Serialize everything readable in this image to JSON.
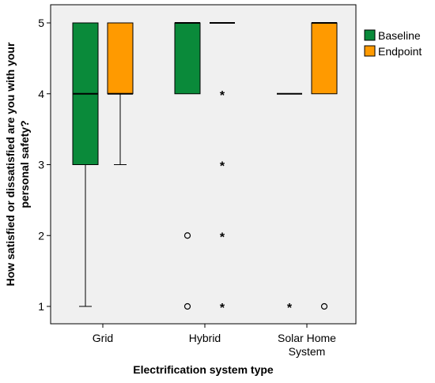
{
  "chart_data": {
    "type": "boxplot",
    "xlabel": "Electrification system type",
    "ylabel_lines": [
      "How satisfied or dissatisfied are you with your",
      "personal safety?"
    ],
    "categories": [
      {
        "label_lines": [
          "Grid"
        ]
      },
      {
        "label_lines": [
          "Hybrid"
        ]
      },
      {
        "label_lines": [
          "Solar Home",
          "System"
        ]
      }
    ],
    "yticks": [
      "1",
      "2",
      "3",
      "4",
      "5"
    ],
    "ylim": [
      0.6,
      5.25
    ],
    "grid": false,
    "legend": {
      "position": "right",
      "entries": [
        "Baseline",
        "Endpoint"
      ]
    },
    "series": [
      {
        "name": "Baseline",
        "color": "#0a8a3a",
        "boxes": [
          {
            "category": "Grid",
            "whisker_low": 1,
            "q1": 3,
            "median": 4,
            "q3": 5,
            "whisker_high": 5,
            "outliers": [],
            "extremes": []
          },
          {
            "category": "Hybrid",
            "whisker_low": 4,
            "q1": 4,
            "median": 5,
            "q3": 5,
            "whisker_high": 5,
            "outliers": [
              2,
              1
            ],
            "extremes": []
          },
          {
            "category": "Solar Home System",
            "whisker_low": 4,
            "q1": 4,
            "median": 4,
            "q3": 4,
            "whisker_high": 4,
            "outliers": [],
            "extremes": [
              1
            ]
          }
        ]
      },
      {
        "name": "Endpoint",
        "color": "#ff9a00",
        "boxes": [
          {
            "category": "Grid",
            "whisker_low": 3,
            "q1": 4,
            "median": 4,
            "q3": 5,
            "whisker_high": 5,
            "outliers": [],
            "extremes": []
          },
          {
            "category": "Hybrid",
            "whisker_low": 5,
            "q1": 5,
            "median": 5,
            "q3": 5,
            "whisker_high": 5,
            "outliers": [],
            "extremes": [
              4,
              3,
              2,
              1
            ]
          },
          {
            "category": "Solar Home System",
            "whisker_low": 4,
            "q1": 4,
            "median": 5,
            "q3": 5,
            "whisker_high": 5,
            "outliers": [
              1
            ],
            "extremes": []
          }
        ]
      }
    ]
  }
}
